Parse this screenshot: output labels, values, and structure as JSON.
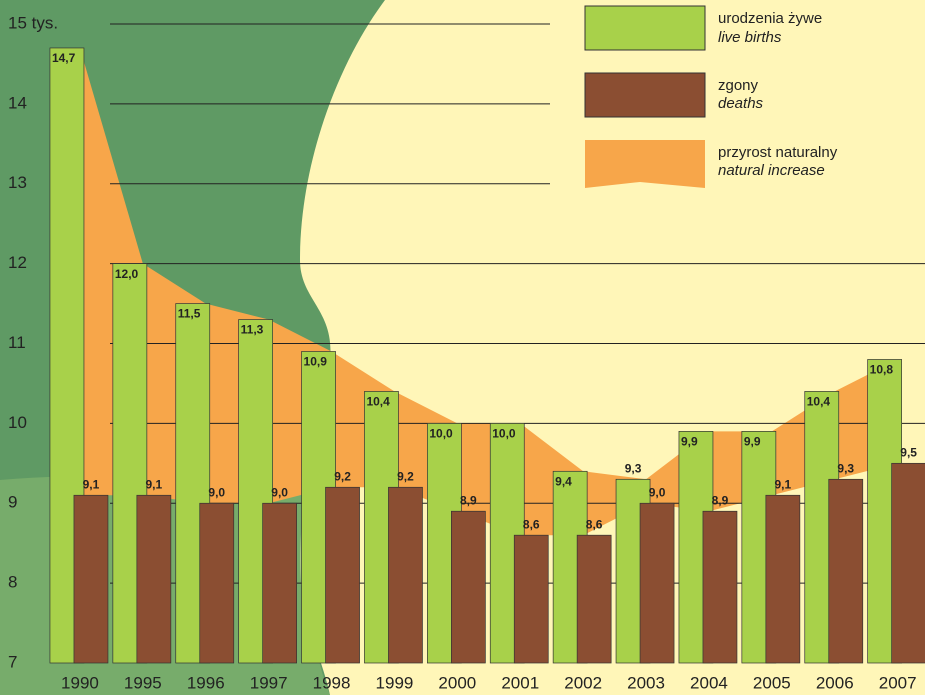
{
  "chart_data": {
    "type": "bar",
    "categories": [
      "1990",
      "1995",
      "1996",
      "1997",
      "1998",
      "1999",
      "2000",
      "2001",
      "2002",
      "2003",
      "2004",
      "2005",
      "2006",
      "2007"
    ],
    "series": [
      {
        "name": "urodzenia żywe",
        "name_en": "live births",
        "color": "#a8d14a",
        "values": [
          14.7,
          12.0,
          11.5,
          11.3,
          10.9,
          10.4,
          10.0,
          10.0,
          9.4,
          9.3,
          9.9,
          9.9,
          10.4,
          10.8
        ],
        "value_labels": [
          "14,7",
          "12,0",
          "11,5",
          "11,3",
          "10,9",
          "10,4",
          "10,0",
          "10,0",
          "9,4",
          "9,3",
          "9,9",
          "9,9",
          "10,4",
          "10,8"
        ]
      },
      {
        "name": "zgony",
        "name_en": "deaths",
        "color": "#8b4e32",
        "values": [
          9.1,
          9.1,
          9.0,
          9.0,
          9.2,
          9.2,
          8.9,
          8.6,
          8.6,
          9.0,
          8.9,
          9.1,
          9.3,
          9.5
        ],
        "value_labels": [
          "9,1",
          "9,1",
          "9,0",
          "9,0",
          "9,2",
          "9,2",
          "8,9",
          "8,6",
          "8,6",
          "9,0",
          "8,9",
          "9,1",
          "9,3",
          "9,5"
        ]
      }
    ],
    "increase": {
      "name": "przyrost naturalny",
      "name_en": "natural increase",
      "color": "#f7a64a"
    },
    "ylim": [
      7,
      15
    ],
    "yticks": [
      7,
      8,
      9,
      10,
      11,
      12,
      13,
      14,
      {
        "value": 15,
        "label": "15 tys."
      }
    ],
    "grid": true
  }
}
